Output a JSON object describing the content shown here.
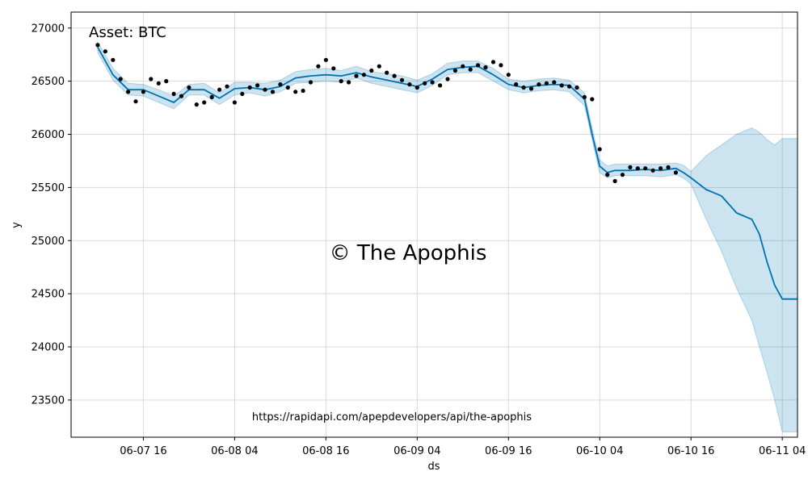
{
  "chart_data": {
    "type": "line",
    "annotations": {
      "asset": "Asset: BTC",
      "watermark": "© The Apophis",
      "url": "https://rapidapi.com/apepdevelopers/api/the-apophis"
    },
    "xlabel": "ds",
    "ylabel": "y",
    "x_ticks": [
      "06-07 16",
      "06-08 04",
      "06-08 16",
      "06-09 04",
      "06-09 16",
      "06-10 04",
      "06-10 16",
      "06-11 04"
    ],
    "y_ticks": [
      23500,
      24000,
      24500,
      25000,
      25500,
      26000,
      26500,
      27000
    ],
    "x_range": [
      "06-07 06:30",
      "06-11 06:00"
    ],
    "ylim": [
      23150,
      27150
    ],
    "grid": true,
    "colors": {
      "forecast": "#0072B2",
      "interval": "#0072B2",
      "actual": "#000000",
      "grid": "#d9d9d9"
    },
    "forecast": {
      "x": [
        "06-07 10:00",
        "06-07 12:00",
        "06-07 14:00",
        "06-07 16:00",
        "06-07 18:00",
        "06-07 20:00",
        "06-07 22:00",
        "06-08 00:00",
        "06-08 02:00",
        "06-08 04:00",
        "06-08 06:00",
        "06-08 08:00",
        "06-08 10:00",
        "06-08 12:00",
        "06-08 14:00",
        "06-08 16:00",
        "06-08 18:00",
        "06-08 20:00",
        "06-08 22:00",
        "06-09 00:00",
        "06-09 02:00",
        "06-09 04:00",
        "06-09 06:00",
        "06-09 08:00",
        "06-09 10:00",
        "06-09 12:00",
        "06-09 14:00",
        "06-09 16:00",
        "06-09 18:00",
        "06-09 20:00",
        "06-09 22:00",
        "06-10 00:00",
        "06-10 02:00",
        "06-10 03:00",
        "06-10 04:00",
        "06-10 05:00",
        "06-10 06:00",
        "06-10 08:00",
        "06-10 10:00",
        "06-10 12:00",
        "06-10 14:00",
        "06-10 15:00",
        "06-10 16:00",
        "06-10 18:00",
        "06-10 20:00",
        "06-10 22:00",
        "06-11 00:00",
        "06-11 01:00",
        "06-11 02:00",
        "06-11 03:00",
        "06-11 04:00",
        "06-11 05:00",
        "06-11 06:00"
      ],
      "yhat": [
        26820,
        26560,
        26420,
        26420,
        26360,
        26300,
        26420,
        26420,
        26340,
        26430,
        26440,
        26420,
        26450,
        26530,
        26550,
        26560,
        26550,
        26580,
        26540,
        26510,
        26480,
        26450,
        26520,
        26610,
        26630,
        26640,
        26560,
        26470,
        26440,
        26460,
        26470,
        26460,
        26330,
        26000,
        25700,
        25640,
        25660,
        25660,
        25670,
        25660,
        25680,
        25640,
        25590,
        25480,
        25420,
        25260,
        25200,
        25060,
        24800,
        24580,
        24450,
        24450,
        24450
      ],
      "yhat_upper": [
        26870,
        26620,
        26480,
        26470,
        26420,
        26360,
        26470,
        26480,
        26390,
        26490,
        26490,
        26480,
        26510,
        26590,
        26610,
        26620,
        26600,
        26640,
        26590,
        26570,
        26550,
        26510,
        26570,
        26670,
        26690,
        26690,
        26620,
        26520,
        26500,
        26520,
        26530,
        26510,
        26390,
        26060,
        25760,
        25700,
        25720,
        25720,
        25720,
        25720,
        25730,
        25710,
        25650,
        25800,
        25900,
        26000,
        26060,
        26020,
        25950,
        25900,
        25960,
        25960,
        25960
      ],
      "yhat_lower": [
        26770,
        26510,
        26370,
        26360,
        26300,
        26240,
        26370,
        26370,
        26280,
        26370,
        26390,
        26360,
        26400,
        26480,
        26490,
        26500,
        26490,
        26530,
        26480,
        26450,
        26420,
        26390,
        26460,
        26560,
        26580,
        26580,
        26500,
        26420,
        26390,
        26410,
        26420,
        26400,
        26270,
        25950,
        25640,
        25590,
        25610,
        25610,
        25610,
        25600,
        25620,
        25590,
        25530,
        25200,
        24900,
        24550,
        24250,
        24000,
        23760,
        23500,
        23200,
        23200,
        23200
      ]
    },
    "actual": {
      "x": [
        "06-07 10:00",
        "06-07 11:00",
        "06-07 12:00",
        "06-07 13:00",
        "06-07 14:00",
        "06-07 15:00",
        "06-07 16:00",
        "06-07 17:00",
        "06-07 18:00",
        "06-07 19:00",
        "06-07 20:00",
        "06-07 21:00",
        "06-07 22:00",
        "06-07 23:00",
        "06-08 00:00",
        "06-08 01:00",
        "06-08 02:00",
        "06-08 03:00",
        "06-08 04:00",
        "06-08 05:00",
        "06-08 06:00",
        "06-08 07:00",
        "06-08 08:00",
        "06-08 09:00",
        "06-08 10:00",
        "06-08 11:00",
        "06-08 12:00",
        "06-08 13:00",
        "06-08 14:00",
        "06-08 15:00",
        "06-08 16:00",
        "06-08 17:00",
        "06-08 18:00",
        "06-08 19:00",
        "06-08 20:00",
        "06-08 21:00",
        "06-08 22:00",
        "06-08 23:00",
        "06-09 00:00",
        "06-09 01:00",
        "06-09 02:00",
        "06-09 03:00",
        "06-09 04:00",
        "06-09 05:00",
        "06-09 06:00",
        "06-09 07:00",
        "06-09 08:00",
        "06-09 09:00",
        "06-09 10:00",
        "06-09 11:00",
        "06-09 12:00",
        "06-09 13:00",
        "06-09 14:00",
        "06-09 15:00",
        "06-09 16:00",
        "06-09 17:00",
        "06-09 18:00",
        "06-09 19:00",
        "06-09 20:00",
        "06-09 21:00",
        "06-09 22:00",
        "06-09 23:00",
        "06-10 00:00",
        "06-10 01:00",
        "06-10 02:00",
        "06-10 03:00",
        "06-10 04:00",
        "06-10 05:00",
        "06-10 06:00",
        "06-10 07:00",
        "06-10 08:00",
        "06-10 09:00",
        "06-10 10:00",
        "06-10 11:00",
        "06-10 12:00",
        "06-10 13:00",
        "06-10 14:00"
      ],
      "y": [
        26840,
        26780,
        26700,
        26520,
        26400,
        26310,
        26400,
        26520,
        26480,
        26500,
        26380,
        26360,
        26440,
        26280,
        26300,
        26350,
        26420,
        26450,
        26300,
        26380,
        26440,
        26460,
        26420,
        26400,
        26470,
        26440,
        26400,
        26410,
        26490,
        26640,
        26700,
        26620,
        26500,
        26490,
        26550,
        26560,
        26600,
        26640,
        26580,
        26550,
        26510,
        26470,
        26440,
        26480,
        26490,
        26460,
        26520,
        26600,
        26640,
        26610,
        26650,
        26630,
        26680,
        26650,
        26560,
        26470,
        26440,
        26430,
        26470,
        26480,
        26490,
        26460,
        26450,
        26440,
        26350,
        26330,
        25860,
        25620,
        25560,
        25620,
        25690,
        25680,
        25680,
        25660,
        25680,
        25690,
        25640
      ]
    }
  }
}
